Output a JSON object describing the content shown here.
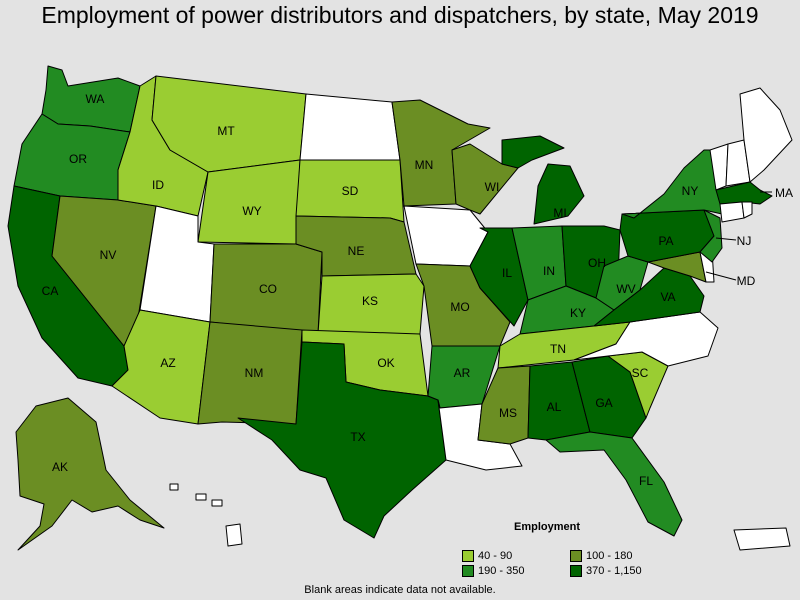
{
  "title": "Employment of power distributors and dispatchers, by state, May 2019",
  "legend": {
    "title": "Employment",
    "items": [
      {
        "label": "40 - 90",
        "color": "#9acd32"
      },
      {
        "label": "100 - 180",
        "color": "#6b8e23"
      },
      {
        "label": "190 - 350",
        "color": "#228b22"
      },
      {
        "label": "370 - 1,150",
        "color": "#006400"
      }
    ]
  },
  "footnote": "Blank areas indicate data not available.",
  "no_data_color": "#ffffff",
  "states": {
    "WA": "190 - 350",
    "OR": "190 - 350",
    "CA": "370 - 1,150",
    "NV": "100 - 180",
    "ID": "40 - 90",
    "MT": "40 - 90",
    "WY": "40 - 90",
    "UT": "",
    "AZ": "40 - 90",
    "CO": "100 - 180",
    "NM": "100 - 180",
    "ND": "",
    "SD": "40 - 90",
    "NE": "100 - 180",
    "KS": "40 - 90",
    "OK": "40 - 90",
    "TX": "370 - 1,150",
    "MN": "100 - 180",
    "IA": "",
    "MO": "100 - 180",
    "AR": "190 - 350",
    "LA": "",
    "WI": "100 - 180",
    "IL": "370 - 1,150",
    "MI": "370 - 1,150",
    "IN": "190 - 350",
    "OH": "370 - 1,150",
    "KY": "190 - 350",
    "TN": "40 - 90",
    "MS": "100 - 180",
    "AL": "370 - 1,150",
    "GA": "370 - 1,150",
    "FL": "190 - 350",
    "SC": "40 - 90",
    "NC": "",
    "VA": "370 - 1,150",
    "WV": "190 - 350",
    "PA": "370 - 1,150",
    "NY": "190 - 350",
    "NJ": "190 - 350",
    "MD": "100 - 180",
    "DE": "",
    "MA": "370 - 1,150",
    "CT": "",
    "RI": "",
    "VT": "",
    "NH": "",
    "ME": "",
    "AK": "100 - 180",
    "HI": "",
    "PR": ""
  },
  "labels": {
    "WA": "WA",
    "OR": "OR",
    "CA": "CA",
    "NV": "NV",
    "ID": "ID",
    "MT": "MT",
    "WY": "WY",
    "AZ": "AZ",
    "CO": "CO",
    "NM": "NM",
    "SD": "SD",
    "NE": "NE",
    "KS": "KS",
    "OK": "OK",
    "TX": "TX",
    "MN": "MN",
    "MO": "MO",
    "AR": "AR",
    "WI": "WI",
    "IL": "IL",
    "MI": "MI",
    "IN": "IN",
    "OH": "OH",
    "KY": "KY",
    "TN": "TN",
    "MS": "MS",
    "AL": "AL",
    "GA": "GA",
    "FL": "FL",
    "SC": "SC",
    "VA": "VA",
    "WV": "WV",
    "PA": "PA",
    "NY": "NY",
    "NJ": "NJ",
    "MD": "MD",
    "MA": "MA",
    "AK": "AK"
  }
}
